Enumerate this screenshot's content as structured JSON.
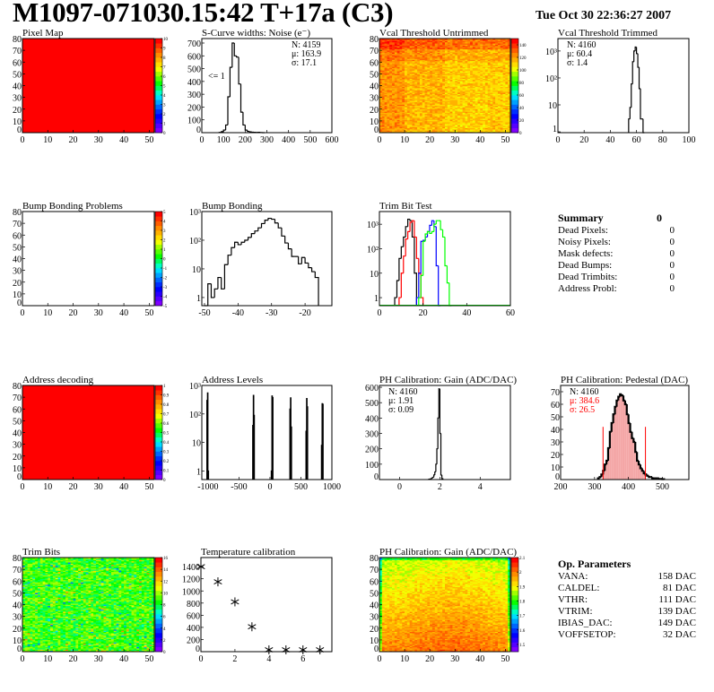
{
  "header": {
    "title": "M1097-071030.15:42 T+17a (C3)",
    "date": "Tue Oct 30 22:36:27 2007"
  },
  "colors": {
    "frame": "#000000",
    "fit": "#ff0000",
    "trim_series": [
      "#000000",
      "#ff0000",
      "#0000ff",
      "#00ff00"
    ]
  },
  "summary": {
    "title": "Summary",
    "total": "0",
    "rows": [
      {
        "label": "Dead Pixels:",
        "value": "0"
      },
      {
        "label": "Noisy Pixels:",
        "value": "0"
      },
      {
        "label": "Mask defects:",
        "value": "0"
      },
      {
        "label": "Dead Bumps:",
        "value": "0"
      },
      {
        "label": "Dead Trimbits:",
        "value": "0"
      },
      {
        "label": "Address Probl:",
        "value": "0"
      }
    ]
  },
  "op_params": {
    "title": "Op. Parameters",
    "rows": [
      {
        "label": "VANA:",
        "value": "158 DAC"
      },
      {
        "label": "CALDEL:",
        "value": "81 DAC"
      },
      {
        "label": "VTHR:",
        "value": "111 DAC"
      },
      {
        "label": "VTRIM:",
        "value": "139 DAC"
      },
      {
        "label": "IBIAS_DAC:",
        "value": "149 DAC"
      },
      {
        "label": "VOFFSETOP:",
        "value": "32 DAC"
      }
    ]
  },
  "chart_data": [
    {
      "id": "pixel_map",
      "type": "heatmap",
      "title": "Pixel Map",
      "xlim": [
        0,
        52
      ],
      "ylim": [
        0,
        80
      ],
      "xticks": [
        "0",
        "10",
        "20",
        "30",
        "40",
        "50"
      ],
      "yticks": [
        "0",
        "10",
        "20",
        "30",
        "40",
        "50",
        "60",
        "70",
        "80"
      ],
      "zlim": [
        0,
        10
      ],
      "zticks": [
        "0",
        "1",
        "2",
        "3",
        "4",
        "5",
        "6",
        "7",
        "8",
        "9",
        "10"
      ],
      "uniform_value": 10
    },
    {
      "id": "scurve",
      "type": "bar",
      "title": "S-Curve widths: Noise (e⁻)",
      "xlim": [
        0,
        600
      ],
      "ylim": [
        0,
        735
      ],
      "xticks": [
        "0",
        "100",
        "200",
        "300",
        "400",
        "500",
        "600"
      ],
      "yticks": [
        "0",
        "100",
        "200",
        "300",
        "400",
        "500",
        "600",
        "700"
      ],
      "bins_start": 80,
      "bin_width": 10,
      "values": [
        2,
        8,
        20,
        60,
        280,
        510,
        700,
        600,
        590,
        380,
        160,
        60,
        20,
        10,
        6,
        4,
        3,
        2,
        3,
        1,
        0
      ],
      "stats": [
        "N: 4159",
        "μ: 163.9",
        "σ: 17.1"
      ],
      "annotation": "<= 1"
    },
    {
      "id": "vcal_untrimmed",
      "type": "heatmap",
      "title": "Vcal Threshold Untrimmed",
      "xlim": [
        0,
        52
      ],
      "ylim": [
        0,
        80
      ],
      "xticks": [
        "0",
        "10",
        "20",
        "30",
        "40",
        "50"
      ],
      "yticks": [
        "0",
        "10",
        "20",
        "30",
        "40",
        "50",
        "60",
        "70",
        "80"
      ],
      "zlim": [
        0,
        150
      ],
      "zticks": [
        "0",
        "20",
        "40",
        "60",
        "80",
        "100",
        "120",
        "140"
      ]
    },
    {
      "id": "vcal_trimmed",
      "type": "bar",
      "log_y": true,
      "title": "Vcal Threshold Trimmed",
      "xlim": [
        0,
        100
      ],
      "ylim": [
        0.93,
        2900
      ],
      "xticks": [
        "0",
        "20",
        "40",
        "60",
        "80",
        "100"
      ],
      "yticks": [
        "1",
        "10",
        "10²",
        "10³"
      ],
      "bins_start": 54,
      "bin_width": 1,
      "values": [
        3,
        8,
        60,
        400,
        1000,
        1400,
        800,
        250,
        40,
        3,
        3,
        0
      ],
      "stats": [
        "N: 4160",
        "μ: 60.4",
        "σ:  1.4"
      ]
    },
    {
      "id": "bump_problems",
      "type": "heatmap",
      "title": "Bump Bonding Problems",
      "xlim": [
        0,
        52
      ],
      "ylim": [
        0,
        80
      ],
      "xticks": [
        "0",
        "10",
        "20",
        "30",
        "40",
        "50"
      ],
      "yticks": [
        "0",
        "10",
        "20",
        "30",
        "40",
        "50",
        "60",
        "70",
        "80"
      ],
      "zlim": [
        -5,
        5
      ],
      "zticks": [
        "-5",
        "-4",
        "-3",
        "-2",
        "-1",
        "0",
        "1",
        "2",
        "3",
        "4",
        "5"
      ],
      "empty": true
    },
    {
      "id": "bump_bonding",
      "type": "bar",
      "log_y": true,
      "title": "Bump Bonding",
      "xlim": [
        -50.8,
        -12
      ],
      "ylim": [
        0.52,
        1000
      ],
      "xticks": [
        "-50",
        "-40",
        "-30",
        "-20"
      ],
      "yticks": [
        "1",
        "10",
        "10²",
        "10³"
      ],
      "bins_start": -50,
      "bin_width": 1,
      "values": [
        0.5,
        3,
        1,
        2,
        5,
        2,
        14,
        30,
        55,
        85,
        70,
        85,
        100,
        125,
        170,
        210,
        270,
        380,
        500,
        580,
        540,
        400,
        270,
        140,
        80,
        50,
        27,
        27,
        15,
        25,
        16,
        11,
        8,
        5
      ]
    },
    {
      "id": "trim_bit_test",
      "type": "line",
      "log_y": true,
      "title": "Trim Bit Test",
      "xlim": [
        0,
        60
      ],
      "ylim": [
        0.47,
        3300
      ],
      "xticks": [
        "0",
        "20",
        "40",
        "60"
      ],
      "yticks": [
        "1",
        "10",
        "10²",
        "10³"
      ],
      "bin_width": 1,
      "series": [
        {
          "start": 7,
          "values": [
            1,
            5,
            40,
            120,
            300,
            800,
            1600,
            1400,
            300,
            10
          ]
        },
        {
          "start": 9,
          "values": [
            1,
            10,
            50,
            250,
            500,
            1200,
            1400,
            300,
            40,
            10,
            1
          ]
        },
        {
          "start": 17,
          "values": [
            1,
            10,
            200,
            220,
            300,
            500,
            900,
            1400,
            800,
            20,
            0.4
          ]
        },
        {
          "start": 18,
          "values": [
            1,
            8,
            200,
            400,
            500,
            420,
            500,
            1000,
            1400,
            1400,
            600,
            300,
            20,
            4,
            0.4
          ]
        }
      ]
    },
    {
      "id": "address_decoding",
      "type": "heatmap",
      "title": "Address decoding",
      "xlim": [
        0,
        52
      ],
      "ylim": [
        0,
        80
      ],
      "xticks": [
        "0",
        "10",
        "20",
        "30",
        "40",
        "50"
      ],
      "yticks": [
        "0",
        "10",
        "20",
        "30",
        "40",
        "50",
        "60",
        "70",
        "80"
      ],
      "zlim": [
        0,
        1
      ],
      "zticks": [
        "0",
        "0.1",
        "0.2",
        "0.3",
        "0.4",
        "0.5",
        "0.6",
        "0.7",
        "0.8",
        "0.9",
        "1"
      ],
      "uniform_value": 1
    },
    {
      "id": "address_levels",
      "type": "bar",
      "log_y": true,
      "title": "Address Levels",
      "xlim": [
        -1100,
        1000
      ],
      "ylim": [
        0.5,
        1000
      ],
      "xticks": [
        "-1000",
        "-500",
        "0",
        "500",
        "1000"
      ],
      "yticks": [
        "1",
        "10",
        "10²",
        "10³"
      ],
      "bin_width": 10,
      "peaks": [
        [
          -1020,
          300
        ],
        [
          -1010,
          550
        ],
        [
          -1000,
          1
        ],
        [
          -280,
          40
        ],
        [
          -270,
          450
        ],
        [
          -260,
          90
        ],
        [
          20,
          1
        ],
        [
          30,
          430
        ],
        [
          40,
          380
        ],
        [
          320,
          150
        ],
        [
          330,
          370
        ],
        [
          340,
          35
        ],
        [
          580,
          25
        ],
        [
          590,
          350
        ],
        [
          600,
          180
        ],
        [
          830,
          8
        ],
        [
          840,
          230
        ],
        [
          850,
          220
        ]
      ]
    },
    {
      "id": "ph_gain_hist",
      "type": "bar",
      "title": "PH Calibration: Gain (ADC/DAC)",
      "xlim": [
        -1,
        5.5
      ],
      "ylim": [
        0,
        612
      ],
      "xticks": [
        "0",
        "2",
        "4"
      ],
      "yticks": [
        "0",
        "100",
        "200",
        "300",
        "400",
        "500",
        "600"
      ],
      "bins_start": 1.45,
      "bin_width": 0.05,
      "values": [
        2,
        3,
        5,
        10,
        15,
        30,
        50,
        100,
        200,
        400,
        590,
        300,
        30,
        5
      ],
      "stats": [
        "N: 4160",
        "μ: 1.91",
        "σ: 0.09"
      ]
    },
    {
      "id": "ph_pedestal",
      "type": "bar",
      "title": "PH Calibration: Pedestal (DAC)",
      "xlim": [
        200,
        578
      ],
      "ylim": [
        0,
        75
      ],
      "xticks": [
        "200",
        "300",
        "400",
        "500"
      ],
      "yticks": [
        "0",
        "10",
        "20",
        "30",
        "40",
        "50",
        "60",
        "70"
      ],
      "bins_start": 310,
      "bin_width": 5,
      "values": [
        1,
        2,
        4,
        7,
        12,
        15,
        25,
        38,
        45,
        52,
        58,
        63,
        66,
        68,
        67,
        63,
        60,
        52,
        45,
        38,
        33,
        30,
        22,
        15,
        12,
        9,
        7,
        5,
        4,
        3,
        2,
        2,
        1,
        1,
        1,
        1,
        0.5,
        0.5,
        0.3
      ],
      "fit_range": [
        325,
        450
      ],
      "fit_marker_height": 42,
      "stats": [
        "N: 4160",
        "μ: 384.6",
        "σ: 26.5"
      ]
    },
    {
      "id": "trim_bits",
      "type": "heatmap",
      "title": "Trim Bits",
      "xlim": [
        0,
        52
      ],
      "ylim": [
        0,
        80
      ],
      "xticks": [
        "0",
        "10",
        "20",
        "30",
        "40",
        "50"
      ],
      "yticks": [
        "0",
        "10",
        "20",
        "30",
        "40",
        "50",
        "60",
        "70",
        "80"
      ],
      "zlim": [
        0,
        16
      ],
      "zticks": [
        "0",
        "2",
        "4",
        "6",
        "8",
        "10",
        "12",
        "14",
        "16"
      ]
    },
    {
      "id": "temperature",
      "type": "scatter",
      "title": "Temperature calibration",
      "xlim": [
        0,
        7.7
      ],
      "ylim": [
        0,
        1550
      ],
      "xticks": [
        "0",
        "2",
        "4",
        "6"
      ],
      "yticks": [
        "0",
        "200",
        "400",
        "600",
        "800",
        "1000",
        "1200",
        "1400"
      ],
      "x": [
        0,
        1,
        2,
        3,
        4,
        5,
        6,
        7
      ],
      "y": [
        1400,
        1150,
        820,
        410,
        30,
        30,
        30,
        30
      ]
    },
    {
      "id": "ph_gain_map",
      "type": "heatmap",
      "title": "PH Calibration: Gain (ADC/DAC)",
      "xlim": [
        0,
        52
      ],
      "ylim": [
        0,
        80
      ],
      "xticks": [
        "0",
        "10",
        "20",
        "30",
        "40",
        "50"
      ],
      "yticks": [
        "0",
        "10",
        "20",
        "30",
        "40",
        "50",
        "60",
        "70",
        "80"
      ],
      "zlim": [
        1.45,
        2.1
      ],
      "zticks": [
        "1.5",
        "1.6",
        "1.7",
        "1.8",
        "1.9",
        "2",
        "2.1"
      ]
    }
  ]
}
